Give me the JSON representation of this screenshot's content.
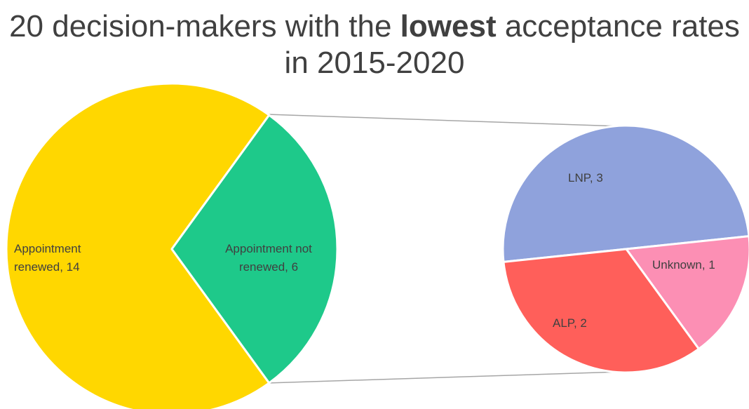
{
  "chart_data": {
    "type": "pie-of-pie",
    "title_runs": [
      {
        "text": "20 decision-makers with the",
        "bold": false
      },
      {
        "text": "lowest",
        "bold": true
      },
      {
        "text": "acceptance rates in 2015-2020",
        "bold": false
      }
    ],
    "primary": {
      "categories": [
        "Appointment renewed",
        "Appointment not renewed"
      ],
      "values": [
        14,
        6
      ],
      "data_labels": [
        "Appointment renewed, 14",
        "Appointment not renewed, 6"
      ],
      "colors": [
        "#ffd700",
        "#1ec98a"
      ]
    },
    "secondary": {
      "categories": [
        "LNP",
        "Unknown",
        "ALP"
      ],
      "values": [
        3,
        1,
        2
      ],
      "data_labels": [
        "LNP, 3",
        "Unknown, 1",
        "ALP, 2"
      ],
      "colors": [
        "#8fa2dc",
        "#fc8fb4",
        "#ff5f5a"
      ]
    }
  }
}
